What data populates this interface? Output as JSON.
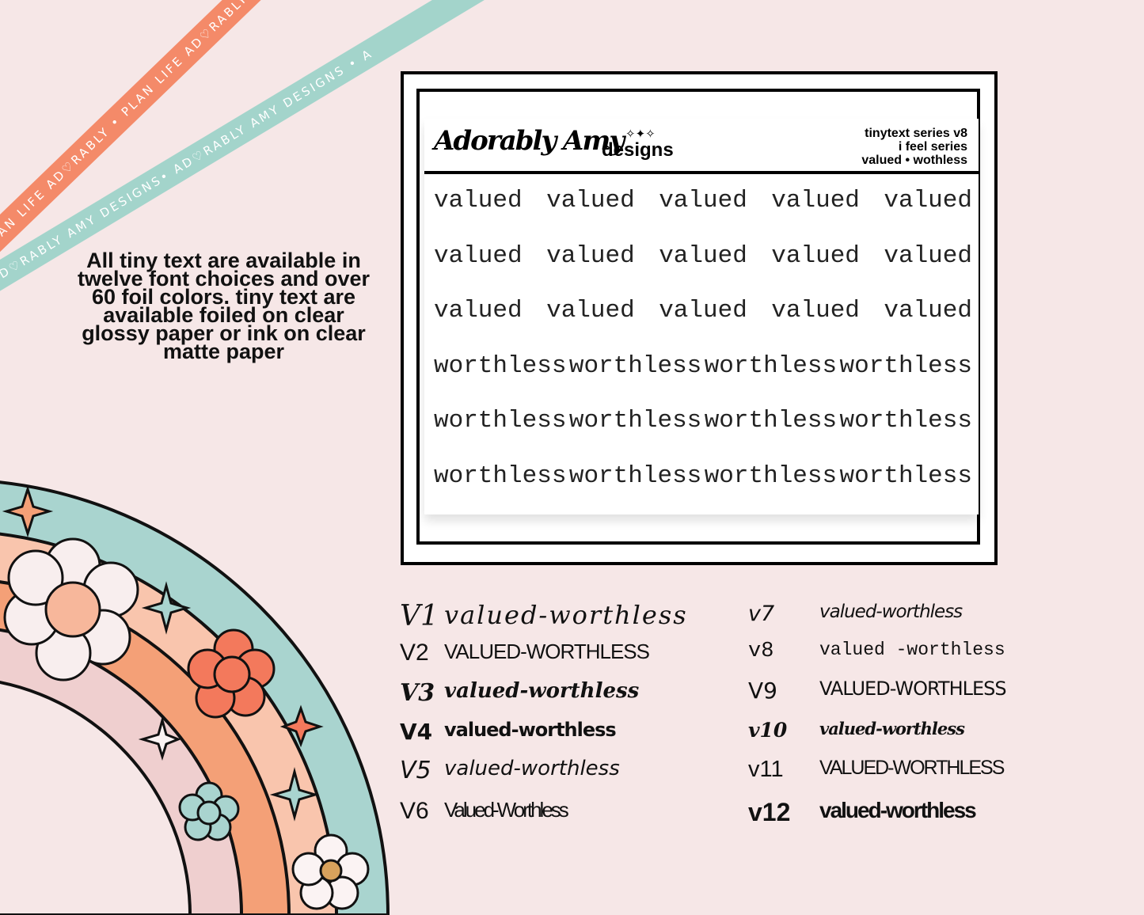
{
  "ribbons": {
    "orange": "PLAN LIFE AD♡RABLY • PLAN LIFE AD♡RABLY • PLAN LIFE AD",
    "teal": "AD♡RABLY AMY DESIGNS• AD♡RABLY AMY DESIGNS • A"
  },
  "promo": "All tiny text are available in twelve font choices and over 60 foil colors.  tiny text are available foiled on clear glossy paper or ink on clear matte paper",
  "sheet": {
    "logo_script": "Adorably Amy",
    "logo_word": "designs",
    "meta": [
      "tinytext series v8",
      "i feel series",
      "valued • wothless"
    ],
    "rows": [
      [
        "valued",
        "valued",
        "valued",
        "valued",
        "valued"
      ],
      [
        "valued",
        "valued",
        "valued",
        "valued",
        "valued"
      ],
      [
        "valued",
        "valued",
        "valued",
        "valued",
        "valued"
      ],
      [
        "worthless",
        "worthless",
        "worthless",
        "worthless"
      ],
      [
        "worthless",
        "worthless",
        "worthless",
        "worthless"
      ],
      [
        "worthless",
        "worthless",
        "worthless",
        "worthless"
      ]
    ]
  },
  "variants": [
    {
      "label": "V1",
      "text": "valued-worthless"
    },
    {
      "label": "V2",
      "text": "VALUED-WORTHLESS"
    },
    {
      "label": "V3",
      "text": "valued-worthless"
    },
    {
      "label": "V4",
      "text": "valued-worthless"
    },
    {
      "label": "V5",
      "text": "valued-worthless"
    },
    {
      "label": "V6",
      "text": "Valued-Worthless"
    },
    {
      "label": "v7",
      "text": "valued-worthless"
    },
    {
      "label": "v8",
      "text": "valued -worthless"
    },
    {
      "label": "V9",
      "text": "VALUED-WORTHLESS"
    },
    {
      "label": "v10",
      "text": "valued-worthless"
    },
    {
      "label": "v11",
      "text": "VALUED-WORTHLESS"
    },
    {
      "label": "v12",
      "text": "valued-worthless"
    }
  ],
  "colors": {
    "background": "#f6e7e7",
    "orange": "#f48a69",
    "teal": "#a3d4cb",
    "peach": "#f9c5ad",
    "deep_orange": "#f4a077",
    "pink": "#efcfcf"
  }
}
